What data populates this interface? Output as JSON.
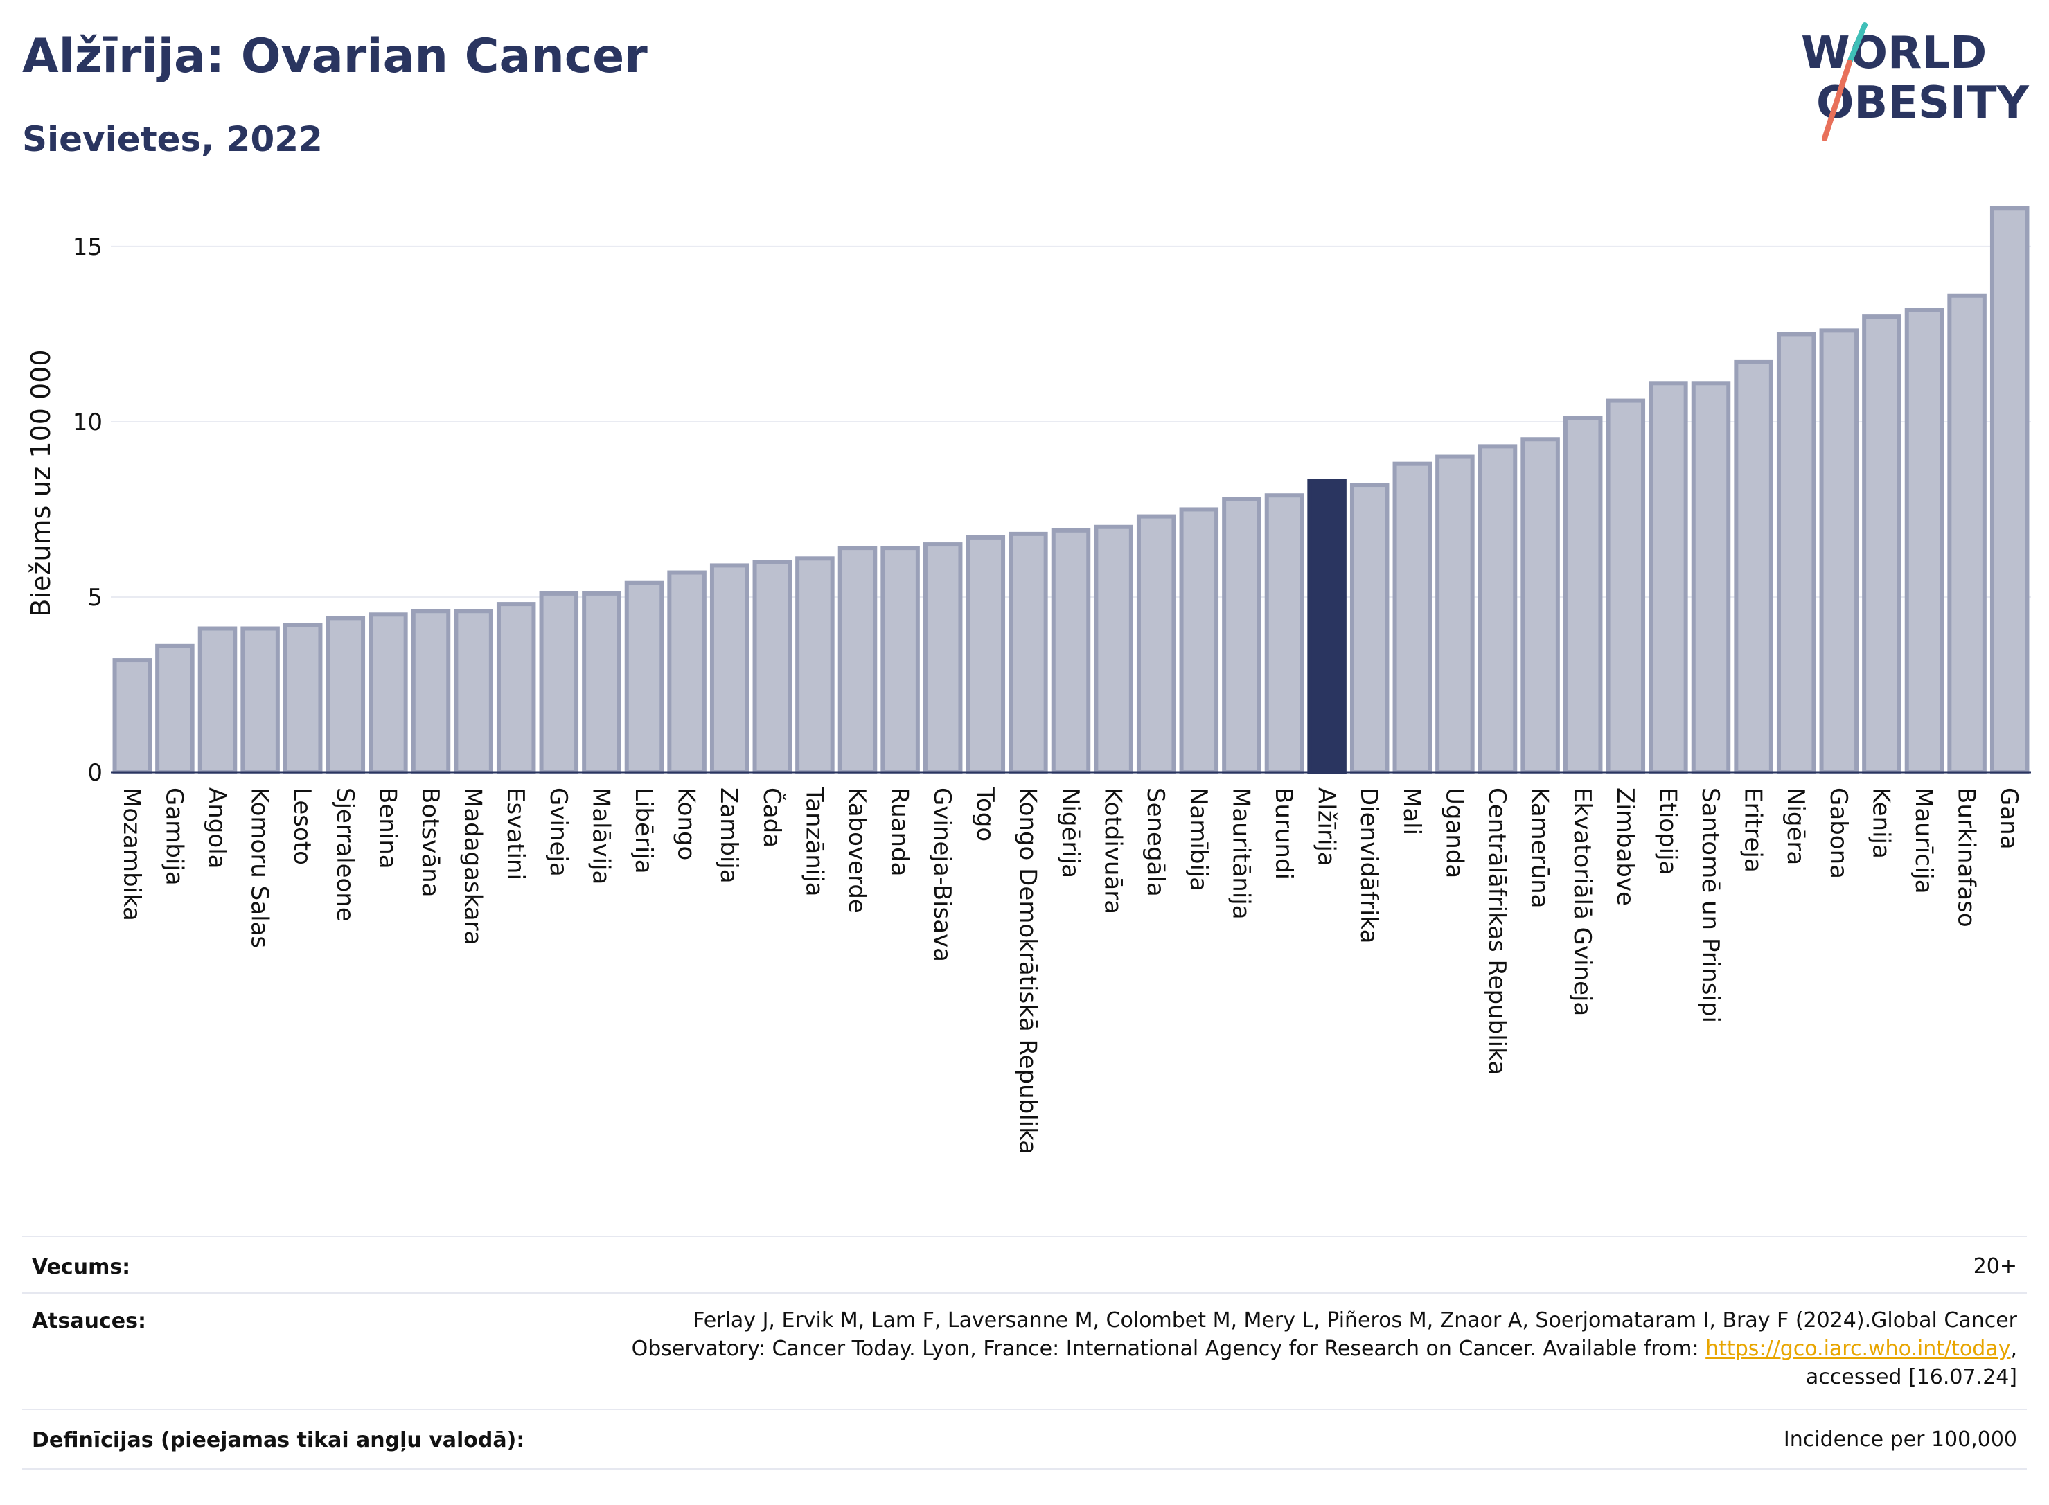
{
  "header": {
    "title": "Alžīrija: Ovarian Cancer",
    "subtitle": "Sievietes, 2022"
  },
  "logo": {
    "line1": "WORLD",
    "line2": "OBESITY"
  },
  "colors": {
    "bar": "#bcc0cf",
    "bar_border": "#9aa0b8",
    "highlight": "#2a3560",
    "text": "#2a3560"
  },
  "chart_data": {
    "type": "bar",
    "ylabel": "Biežums uz 100 000",
    "ylim": [
      0,
      16.5
    ],
    "yticks": [
      0,
      5,
      10,
      15
    ],
    "highlight": "Alžīrija",
    "grid": true,
    "categories": [
      "Mozambika",
      "Gambija",
      "Angola",
      "Komoru Salas",
      "Lesoto",
      "Sjerraleone",
      "Benina",
      "Botsvāna",
      "Madagaskara",
      "Esvatini",
      "Gvineja",
      "Malāvija",
      "Libērija",
      "Kongo",
      "Zambija",
      "Čada",
      "Tanzānija",
      "Kaboverde",
      "Ruanda",
      "Gvineja-Bisava",
      "Togo",
      "Kongo Demokrātiskā Republika",
      "Nigērija",
      "Kotdivuāra",
      "Senegāla",
      "Namībija",
      "Mauritānija",
      "Burundi",
      "Alžīrija",
      "Dienvidāfrika",
      "Mali",
      "Uganda",
      "Centrālāfrikas Republika",
      "Kamerūna",
      "Ekvatoriālā Gvineja",
      "Zimbabve",
      "Etiopija",
      "Santomē un Prinsipi",
      "Eritreja",
      "Nigēra",
      "Gabona",
      "Kenija",
      "Maurīcija",
      "Burkinafaso",
      "Gana"
    ],
    "values": [
      3.2,
      3.6,
      4.1,
      4.1,
      4.2,
      4.4,
      4.5,
      4.6,
      4.6,
      4.8,
      5.1,
      5.1,
      5.4,
      5.7,
      5.9,
      6.0,
      6.1,
      6.4,
      6.4,
      6.5,
      6.7,
      6.8,
      6.9,
      7.0,
      7.3,
      7.5,
      7.8,
      7.9,
      8.3,
      8.2,
      8.8,
      9.0,
      9.3,
      9.5,
      10.1,
      10.6,
      11.1,
      11.1,
      11.7,
      12.5,
      12.6,
      13.0,
      13.2,
      13.6,
      16.1
    ]
  },
  "meta": {
    "age_label": "Vecums:",
    "age_value": "20+",
    "refs_label": "Atsauces:",
    "refs_line1": "Ferlay J, Ervik M, Lam F, Laversanne M, Colombet M, Mery L, Piñeros M, Znaor A, Soerjomataram I, Bray F (2024).Global Cancer",
    "refs_line2": "Observatory: Cancer Today. Lyon, France: International Agency for Research on Cancer. Available from:",
    "refs_link": "https://gco.iarc.who.int/today",
    "refs_line2_end": ",",
    "refs_line3": "accessed [16.07.24]",
    "def_label": "Definīcijas (pieejamas tikai angļu valodā):",
    "def_value": "Incidence per 100,000"
  }
}
